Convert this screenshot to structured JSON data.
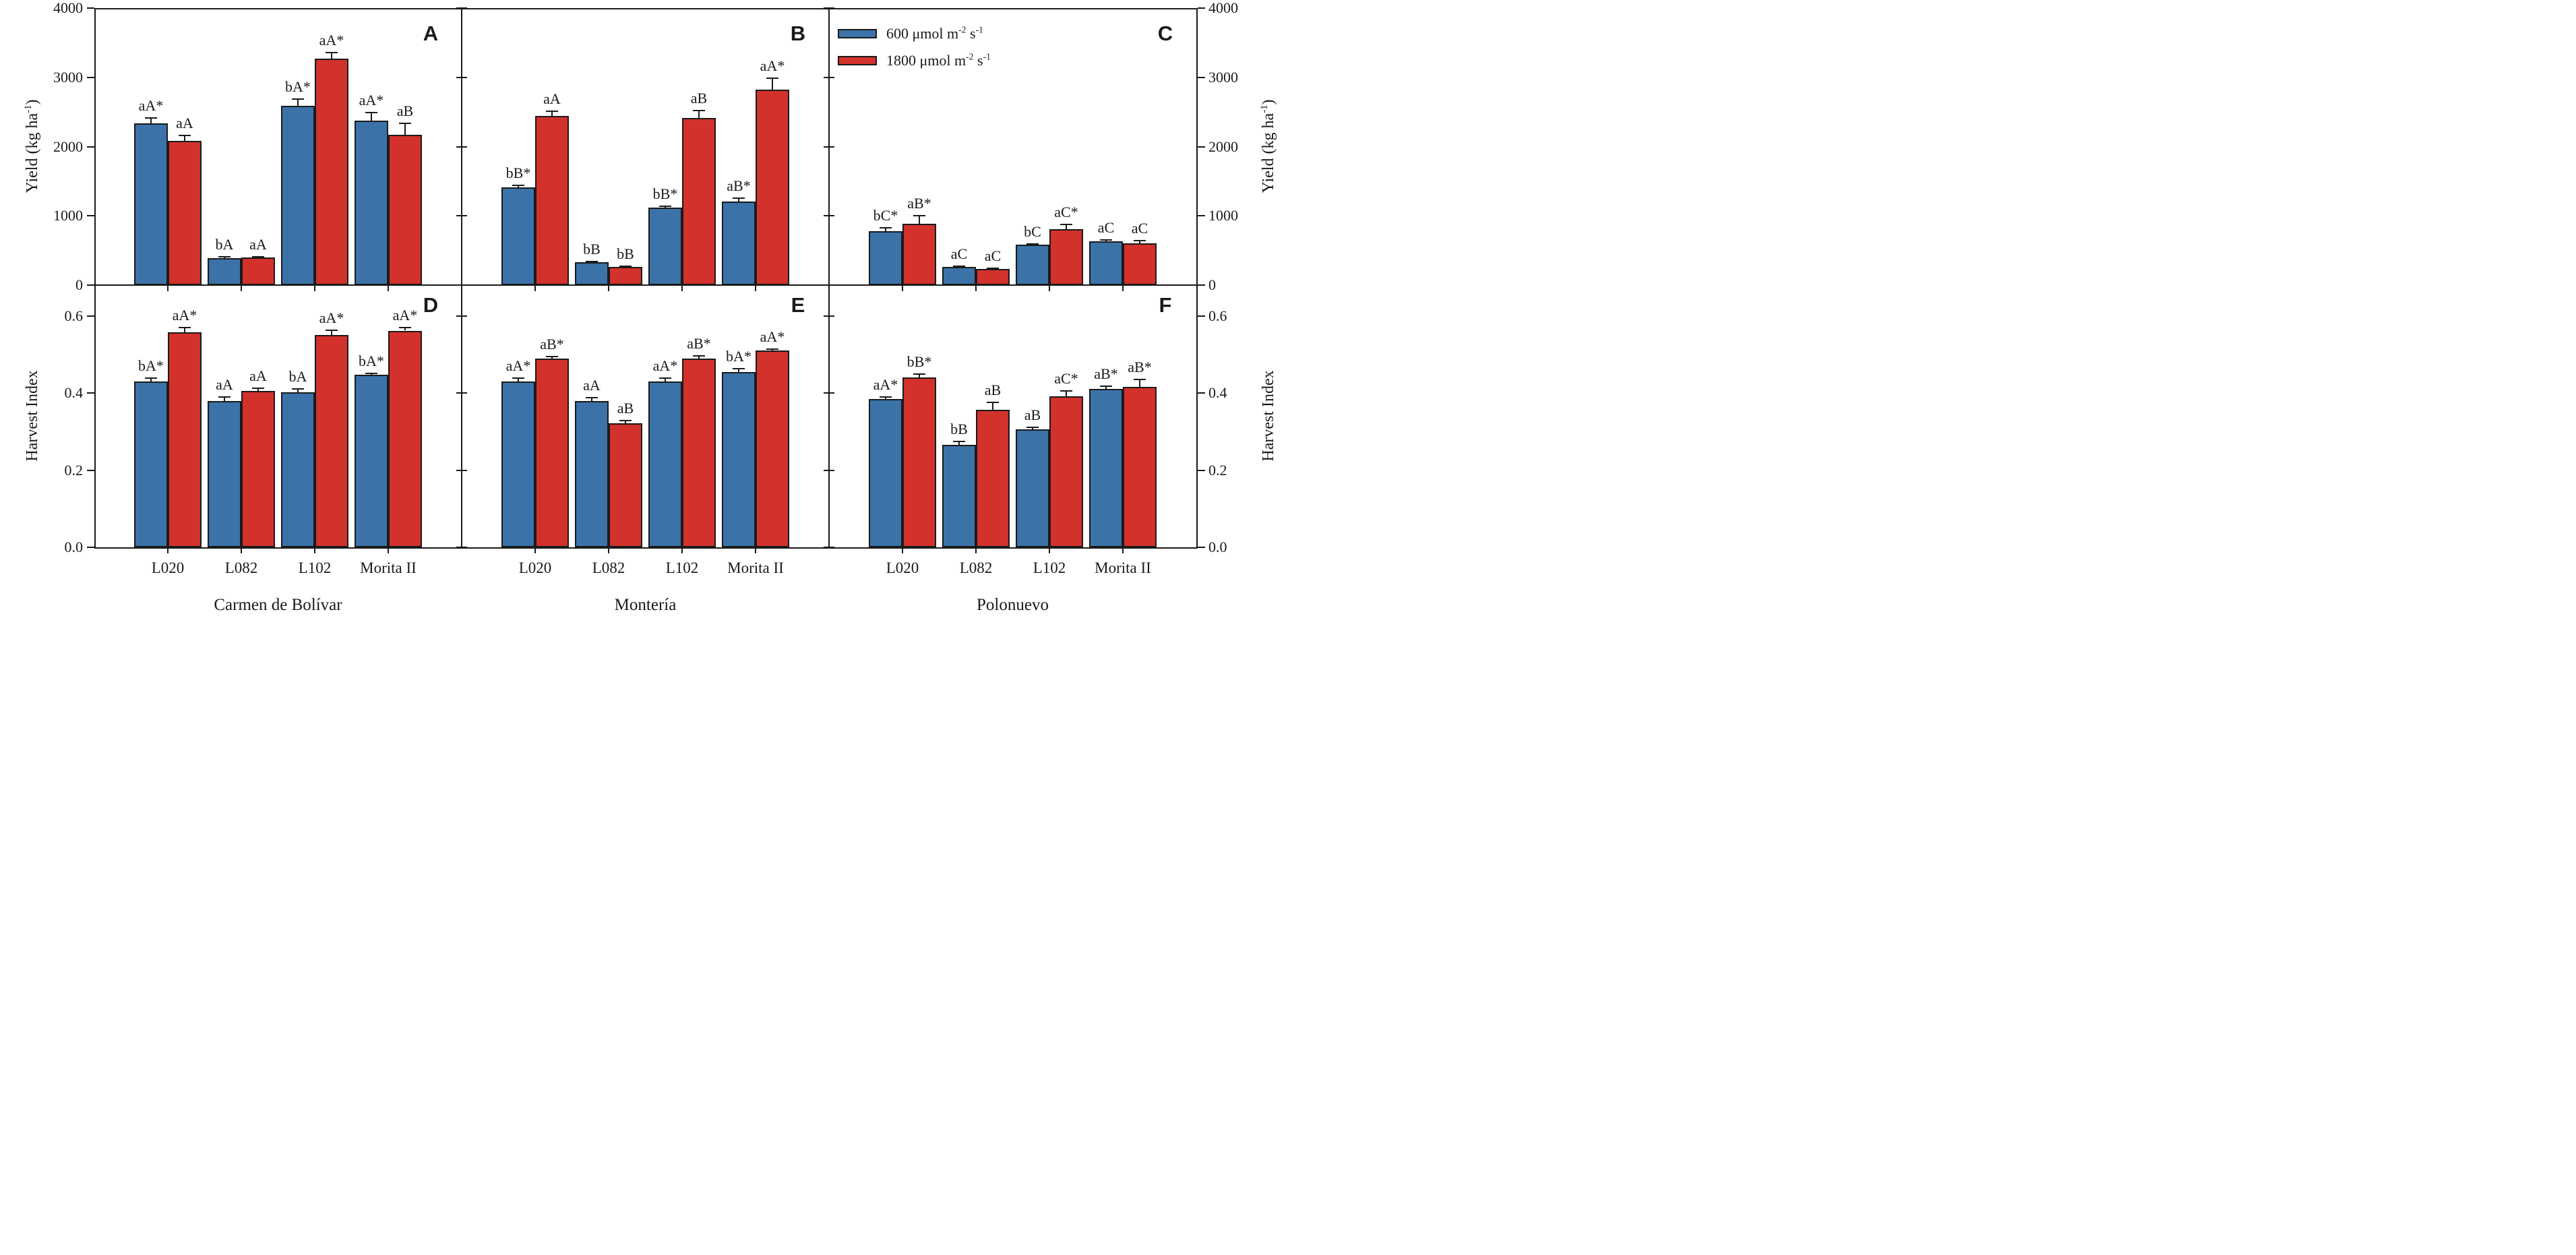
{
  "figure": {
    "background": "#ffffff",
    "ink_color": "#1a1a1a",
    "series_colors": {
      "c600": "#3B73A8",
      "c1800": "#D2312C"
    },
    "legend": [
      {
        "label": "600 μmol m^-2 s^-1",
        "color": "#3B73A8"
      },
      {
        "label": "1800 μmol m^-2 s^-1",
        "color": "#D2312C"
      }
    ],
    "axis_titles": {
      "yield_left": "Yield (kg ha^-1)",
      "yield_right": "Yield (kg ha^-1)",
      "harvest_left": "Harvest Index",
      "harvest_right": "Harvest Index"
    },
    "locations": [
      "Carmen de Bolívar",
      "Montería",
      "Polonuevo"
    ],
    "genotypes": [
      "L020",
      "L082",
      "L102",
      "Morita II"
    ]
  },
  "chart_data": [
    {
      "type": "bar",
      "panel": "A",
      "row": 0,
      "col": 0,
      "location": "Carmen de Bolívar",
      "ylabel": "Yield (kg ha^-1)",
      "ylim": [
        0,
        4000
      ],
      "ytick_values": [
        0,
        1000,
        2000,
        3000,
        4000
      ],
      "ytick_labels": [
        "0",
        "1000",
        "2000",
        "3000",
        "4000"
      ],
      "categories": [
        "L020",
        "L082",
        "L102",
        "Morita II"
      ],
      "series": [
        {
          "name": "600 μmol m^-2 s^-1",
          "color": "#3B73A8",
          "values": [
            2340,
            385,
            2590,
            2370
          ],
          "errors": [
            70,
            20,
            100,
            120
          ],
          "sig_labels": [
            "aA*",
            "bA",
            "bA*",
            "aA*"
          ]
        },
        {
          "name": "1800 μmol m^-2 s^-1",
          "color": "#D2312C",
          "values": [
            2080,
            395,
            3270,
            2170
          ],
          "errors": [
            80,
            18,
            90,
            170
          ],
          "sig_labels": [
            "aA",
            "aA",
            "aA*",
            "aB"
          ]
        }
      ]
    },
    {
      "type": "bar",
      "panel": "B",
      "row": 0,
      "col": 1,
      "location": "Montería",
      "ylabel": "Yield (kg ha^-1)",
      "ylim": [
        0,
        4000
      ],
      "ytick_values": [
        0,
        1000,
        2000,
        3000,
        4000
      ],
      "ytick_labels": [
        "0",
        "1000",
        "2000",
        "3000",
        "4000"
      ],
      "categories": [
        "L020",
        "L082",
        "L102",
        "Morita II"
      ],
      "series": [
        {
          "name": "600 μmol m^-2 s^-1",
          "color": "#3B73A8",
          "values": [
            1410,
            330,
            1120,
            1210
          ],
          "errors": [
            35,
            10,
            15,
            50
          ],
          "sig_labels": [
            "bB*",
            "bB",
            "bB*",
            "aB*"
          ]
        },
        {
          "name": "1800 μmol m^-2 s^-1",
          "color": "#D2312C",
          "values": [
            2440,
            260,
            2410,
            2820
          ],
          "errors": [
            70,
            15,
            110,
            170
          ],
          "sig_labels": [
            "aA",
            "bB",
            "aB",
            "aA*"
          ]
        }
      ]
    },
    {
      "type": "bar",
      "panel": "C",
      "row": 0,
      "col": 2,
      "location": "Polonuevo",
      "ylabel": "Yield (kg ha^-1)",
      "ylim": [
        0,
        4000
      ],
      "ytick_values": [
        0,
        1000,
        2000,
        3000,
        4000
      ],
      "ytick_labels": [
        "0",
        "1000",
        "2000",
        "3000",
        "4000"
      ],
      "categories": [
        "L020",
        "L082",
        "L102",
        "Morita II"
      ],
      "series": [
        {
          "name": "600 μmol m^-2 s^-1",
          "color": "#3B73A8",
          "values": [
            775,
            260,
            580,
            630
          ],
          "errors": [
            55,
            12,
            18,
            22
          ],
          "sig_labels": [
            "bC*",
            "aC",
            "bC",
            "aC"
          ]
        },
        {
          "name": "1800 μmol m^-2 s^-1",
          "color": "#D2312C",
          "values": [
            890,
            230,
            810,
            600
          ],
          "errors": [
            110,
            12,
            70,
            45
          ],
          "sig_labels": [
            "aB*",
            "aC",
            "aC*",
            "aC"
          ]
        }
      ]
    },
    {
      "type": "bar",
      "panel": "D",
      "row": 1,
      "col": 0,
      "location": "Carmen de Bolívar",
      "ylabel": "Harvest Index",
      "ylim": [
        0,
        0.68
      ],
      "ytick_values": [
        0,
        0.2,
        0.4,
        0.6
      ],
      "ytick_labels": [
        "0.0",
        "0.2",
        "0.4",
        "0.6"
      ],
      "categories": [
        "L020",
        "L082",
        "L102",
        "Morita II"
      ],
      "series": [
        {
          "name": "600 μmol m^-2 s^-1",
          "color": "#3B73A8",
          "values": [
            0.43,
            0.38,
            0.402,
            0.447
          ],
          "errors": [
            0.008,
            0.01,
            0.008,
            0.004
          ],
          "sig_labels": [
            "bA*",
            "aA",
            "bA",
            "bA*"
          ]
        },
        {
          "name": "1800 μmol m^-2 s^-1",
          "color": "#D2312C",
          "values": [
            0.558,
            0.406,
            0.551,
            0.562
          ],
          "errors": [
            0.012,
            0.007,
            0.012,
            0.008
          ],
          "sig_labels": [
            "aA*",
            "aA",
            "aA*",
            "aA*"
          ]
        }
      ]
    },
    {
      "type": "bar",
      "panel": "E",
      "row": 1,
      "col": 1,
      "location": "Montería",
      "ylabel": "Harvest Index",
      "ylim": [
        0,
        0.68
      ],
      "ytick_values": [
        0,
        0.2,
        0.4,
        0.6
      ],
      "ytick_labels": [
        "0.0",
        "0.2",
        "0.4",
        "0.6"
      ],
      "categories": [
        "L020",
        "L082",
        "L102",
        "Morita II"
      ],
      "series": [
        {
          "name": "600 μmol m^-2 s^-1",
          "color": "#3B73A8",
          "values": [
            0.43,
            0.38,
            0.43,
            0.455
          ],
          "errors": [
            0.008,
            0.008,
            0.008,
            0.008
          ],
          "sig_labels": [
            "aA*",
            "aA",
            "aA*",
            "bA*"
          ]
        },
        {
          "name": "1800 μmol m^-2 s^-1",
          "color": "#D2312C",
          "values": [
            0.49,
            0.322,
            0.49,
            0.51
          ],
          "errors": [
            0.005,
            0.006,
            0.007,
            0.004
          ],
          "sig_labels": [
            "aB*",
            "aB",
            "aB*",
            "aA*"
          ]
        }
      ]
    },
    {
      "type": "bar",
      "panel": "F",
      "row": 1,
      "col": 2,
      "location": "Polonuevo",
      "ylabel": "Harvest Index",
      "ylim": [
        0,
        0.68
      ],
      "ytick_values": [
        0,
        0.2,
        0.4,
        0.6
      ],
      "ytick_labels": [
        "0.0",
        "0.2",
        "0.4",
        "0.6"
      ],
      "categories": [
        "L020",
        "L082",
        "L102",
        "Morita II"
      ],
      "series": [
        {
          "name": "600 μmol m^-2 s^-1",
          "color": "#3B73A8",
          "values": [
            0.385,
            0.265,
            0.306,
            0.41
          ],
          "errors": [
            0.004,
            0.009,
            0.005,
            0.008
          ],
          "sig_labels": [
            "aA*",
            "bB",
            "aB",
            "aB*"
          ]
        },
        {
          "name": "1800 μmol m^-2 s^-1",
          "color": "#D2312C",
          "values": [
            0.44,
            0.356,
            0.391,
            0.416
          ],
          "errors": [
            0.01,
            0.02,
            0.015,
            0.02
          ],
          "sig_labels": [
            "bB*",
            "aB",
            "aC*",
            "aB*"
          ]
        }
      ]
    }
  ]
}
